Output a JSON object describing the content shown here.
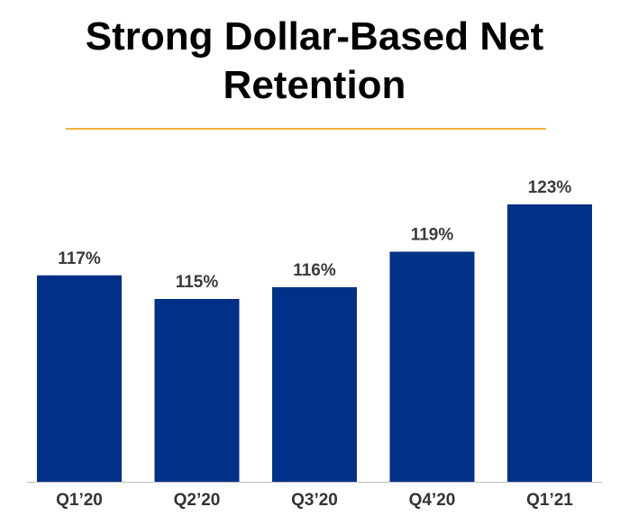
{
  "colors": {
    "bar": "#003087",
    "divider": "#F2B13A",
    "axis": "#bdbdbd"
  },
  "chart_data": {
    "type": "bar",
    "title": "Strong Dollar-Based Net Retention",
    "categories": [
      "Q1’20",
      "Q2’20",
      "Q3’20",
      "Q4’20",
      "Q1’21"
    ],
    "values": [
      117,
      115,
      116,
      119,
      123
    ],
    "data_labels": [
      "117%",
      "115%",
      "116%",
      "119%",
      "123%"
    ],
    "value_unit": "%",
    "xlabel": "",
    "ylabel": "",
    "grid": false,
    "legend": "none"
  }
}
